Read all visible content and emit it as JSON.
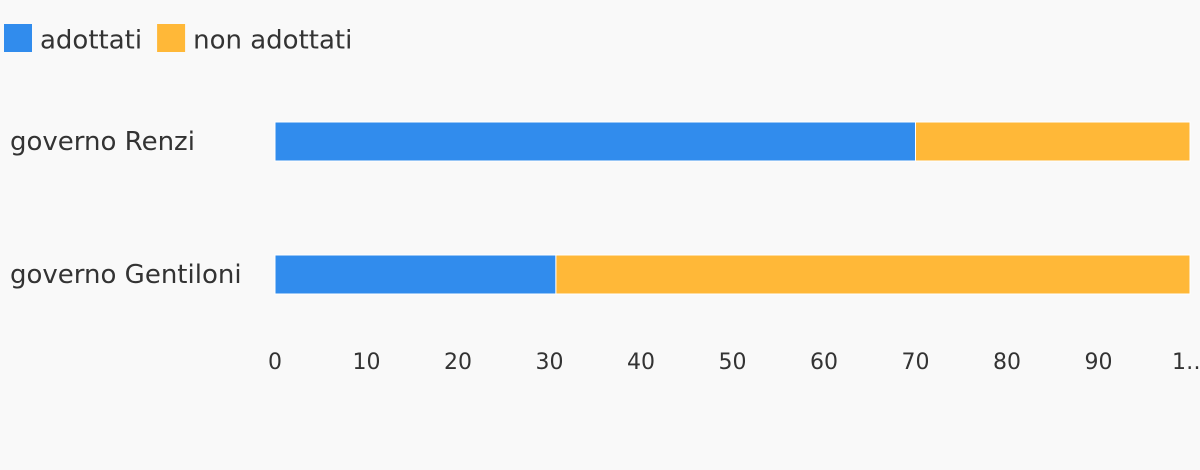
{
  "chart_data": {
    "type": "stacked-bar-horizontal",
    "categories": [
      "governo Renzi",
      "governo Gentiloni"
    ],
    "series": [
      {
        "name": "adottati",
        "color": "#318ced",
        "values": [
          70,
          30.7
        ]
      },
      {
        "name": "non adottati",
        "color": "#ffb838",
        "values": [
          30,
          69.3
        ]
      }
    ],
    "xlim": [
      0,
      100
    ],
    "xticks": [
      0,
      10,
      20,
      30,
      40,
      50,
      60,
      70,
      80,
      90,
      {
        "value": 100,
        "label": "1…"
      }
    ],
    "legend": "top-left"
  }
}
